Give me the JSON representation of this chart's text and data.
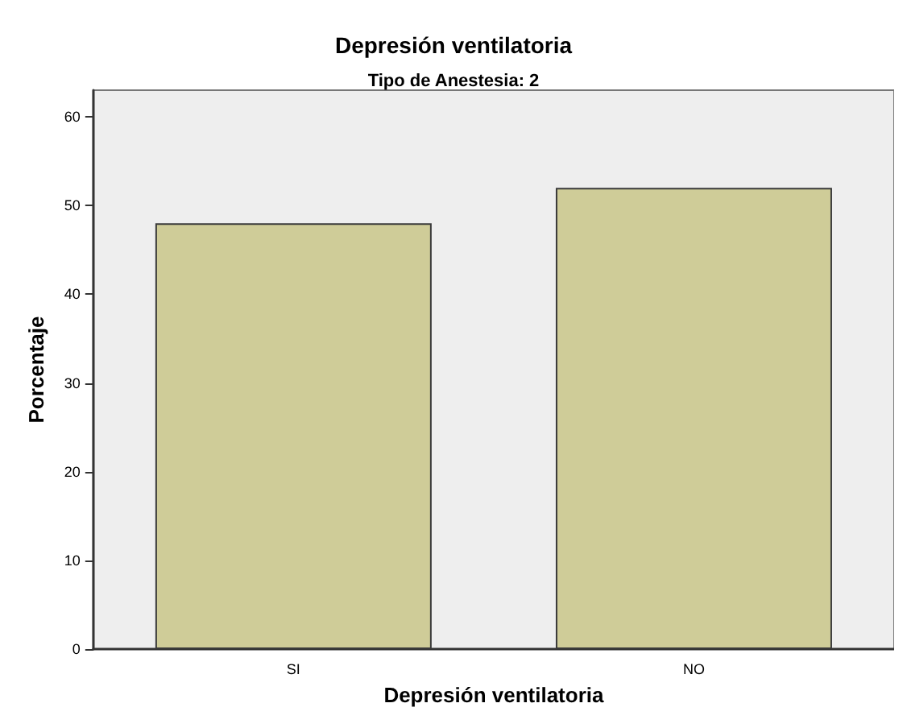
{
  "chart_data": {
    "type": "bar",
    "title": "Depresión ventilatoria",
    "subtitle": "Tipo de Anestesia: 2",
    "xlabel": "Depresión ventilatoria",
    "ylabel": "Porcentaje",
    "categories": [
      "SI",
      "NO"
    ],
    "values": [
      48,
      52
    ],
    "color": "#cfcc98",
    "ylim": [
      0,
      63
    ],
    "yticks": [
      0,
      10,
      20,
      30,
      40,
      50,
      60
    ],
    "grid": false
  }
}
